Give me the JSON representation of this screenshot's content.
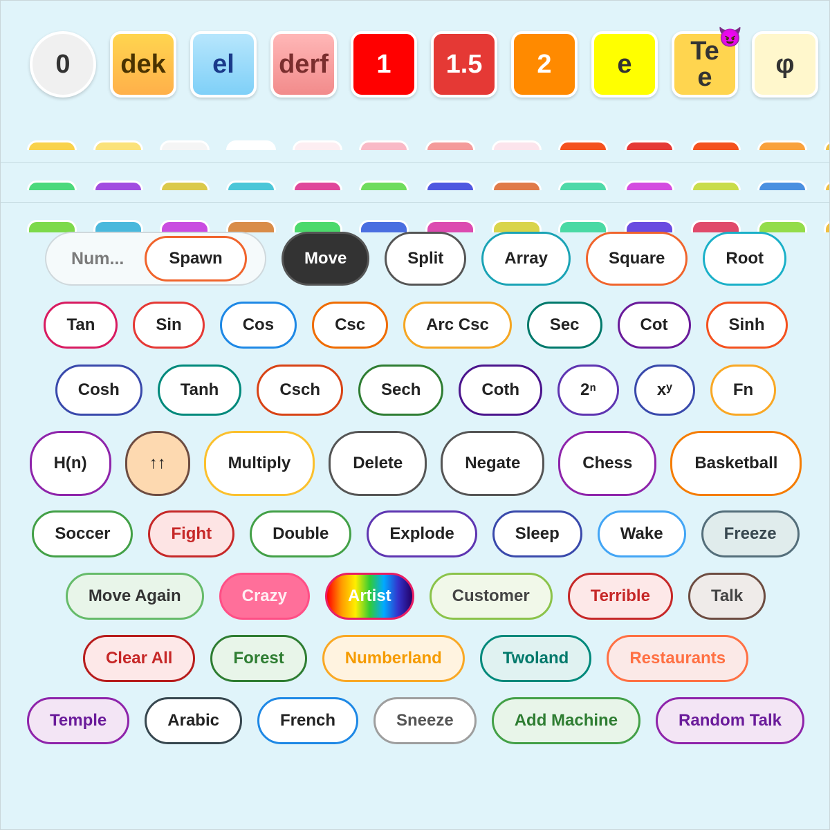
{
  "tiles": [
    {
      "label": "0",
      "fill": "#f0f0f0",
      "text": "#333333",
      "round": true
    },
    {
      "label": "dek",
      "fill": "linear-gradient(#ffd54f,#ffb04a)",
      "text": "#4a3300"
    },
    {
      "label": "el",
      "fill": "linear-gradient(#b7e6fc,#7fd0f8)",
      "text": "#1a3a8a"
    },
    {
      "label": "derf",
      "fill": "linear-gradient(#ffb7b7,#f28b8b)",
      "text": "#7a2e2e"
    },
    {
      "label": "1",
      "fill": "#ff0000",
      "text": "#ffffff"
    },
    {
      "label": "1.5",
      "fill": "#e53935",
      "text": "#ffffff"
    },
    {
      "label": "2",
      "fill": "#ff8a00",
      "text": "#ffffff"
    },
    {
      "label": "e",
      "fill": "#ffff00",
      "text": "#333333"
    },
    {
      "label": "Te",
      "sub": "e",
      "badge": "😈",
      "fill": "#ffd54f",
      "text": "#333333"
    },
    {
      "label": "φ",
      "fill": "#fff7cc",
      "text": "#333333"
    }
  ],
  "input": {
    "placeholder": "Num..."
  },
  "button_rows": [
    [
      {
        "label": "Spawn",
        "border": "#f0642c",
        "fill": "#ffffff",
        "text": "#222222",
        "in_input": true
      },
      {
        "label": "Move",
        "border": "#555555",
        "fill": "#333333",
        "text": "#ffffff"
      },
      {
        "label": "Split",
        "border": "#555555",
        "fill": "#ffffff",
        "text": "#222222"
      },
      {
        "label": "Array",
        "border": "#1aa3b5",
        "fill": "#ffffff",
        "text": "#222222"
      },
      {
        "label": "Square",
        "border": "#f0642c",
        "fill": "#ffffff",
        "text": "#222222"
      },
      {
        "label": "Root",
        "border": "#1ab0c8",
        "fill": "#ffffff",
        "text": "#222222"
      }
    ],
    [
      {
        "label": "Tan",
        "border": "#d81b60",
        "fill": "#ffffff",
        "text": "#222222"
      },
      {
        "label": "Sin",
        "border": "#e53935",
        "fill": "#ffffff",
        "text": "#222222"
      },
      {
        "label": "Cos",
        "border": "#1e88e5",
        "fill": "#ffffff",
        "text": "#222222"
      },
      {
        "label": "Csc",
        "border": "#ef6c00",
        "fill": "#ffffff",
        "text": "#222222"
      },
      {
        "label": "Arc Csc",
        "border": "#f5a623",
        "fill": "#ffffff",
        "text": "#222222"
      },
      {
        "label": "Sec",
        "border": "#00796b",
        "fill": "#ffffff",
        "text": "#222222"
      },
      {
        "label": "Cot",
        "border": "#6a1b9a",
        "fill": "#ffffff",
        "text": "#222222"
      },
      {
        "label": "Sinh",
        "border": "#f4511e",
        "fill": "#ffffff",
        "text": "#222222"
      }
    ],
    [
      {
        "label": "Cosh",
        "border": "#3949ab",
        "fill": "#ffffff",
        "text": "#222222"
      },
      {
        "label": "Tanh",
        "border": "#00897b",
        "fill": "#ffffff",
        "text": "#222222"
      },
      {
        "label": "Csch",
        "border": "#d84315",
        "fill": "#ffffff",
        "text": "#222222"
      },
      {
        "label": "Sech",
        "border": "#2e7d32",
        "fill": "#ffffff",
        "text": "#222222"
      },
      {
        "label": "Coth",
        "border": "#4a148c",
        "fill": "#ffffff",
        "text": "#222222"
      },
      {
        "label": "2ⁿ",
        "border": "#5e35b1",
        "fill": "#ffffff",
        "text": "#222222"
      },
      {
        "label": "xʸ",
        "border": "#3949ab",
        "fill": "#ffffff",
        "text": "#222222"
      },
      {
        "label": "Fn",
        "border": "#f9a825",
        "fill": "#ffffff",
        "text": "#222222"
      }
    ],
    [
      {
        "label": "H(n)",
        "border": "#8e24aa",
        "fill": "#ffffff",
        "text": "#222222"
      },
      {
        "label": "↑↑",
        "border": "#6d4c41",
        "fill": "#fdd9b0",
        "text": "#222222"
      },
      {
        "label": "Multiply",
        "border": "#fbc02d",
        "fill": "#ffffff",
        "text": "#222222"
      },
      {
        "label": "Delete",
        "border": "#555555",
        "fill": "#ffffff",
        "text": "#222222"
      },
      {
        "label": "Negate",
        "border": "#555555",
        "fill": "#ffffff",
        "text": "#222222"
      },
      {
        "label": "Chess",
        "border": "#8e24aa",
        "fill": "#ffffff",
        "text": "#222222"
      },
      {
        "label": "Basketball",
        "border": "#f57c00",
        "fill": "#ffffff",
        "text": "#222222"
      }
    ],
    [
      {
        "label": "Soccer",
        "border": "#43a047",
        "fill": "#ffffff",
        "text": "#222222"
      },
      {
        "label": "Fight",
        "border": "#c62828",
        "fill": "#fde4e4",
        "text": "#c62828"
      },
      {
        "label": "Double",
        "border": "#43a047",
        "fill": "#ffffff",
        "text": "#222222"
      },
      {
        "label": "Explode",
        "border": "#5e35b1",
        "fill": "#ffffff",
        "text": "#222222"
      },
      {
        "label": "Sleep",
        "border": "#3949ab",
        "fill": "#ffffff",
        "text": "#222222"
      },
      {
        "label": "Wake",
        "border": "#42a5f5",
        "fill": "#ffffff",
        "text": "#222222"
      },
      {
        "label": "Freeze",
        "border": "#546e7a",
        "fill": "#e0ecec",
        "text": "#37474f"
      }
    ],
    [
      {
        "label": "Move Again",
        "border": "#66bb6a",
        "fill": "#e8f5e9",
        "text": "#333333"
      },
      {
        "label": "Crazy",
        "border": "#ff4f86",
        "fill": "#ff6f9a",
        "text": "#ffeef2"
      },
      {
        "label": "Artist",
        "border": "#e91e63",
        "fill": "linear-gradient(90deg,#ff0000,#ff9900,#ffee00,#33cc33,#00aaff,#3333cc,#220066)",
        "text": "#ffffff"
      },
      {
        "label": "Customer",
        "border": "#8bc34a",
        "fill": "#f1f8e9",
        "text": "#444444"
      },
      {
        "label": "Terrible",
        "border": "#c62828",
        "fill": "#fde8e8",
        "text": "#c62828"
      },
      {
        "label": "Talk",
        "border": "#6d4c41",
        "fill": "#efebe9",
        "text": "#444444"
      }
    ],
    [
      {
        "label": "Clear All",
        "border": "#b71c1c",
        "fill": "#fde8e8",
        "text": "#c62828"
      },
      {
        "label": "Forest",
        "border": "#2e7d32",
        "fill": "#e8f5e9",
        "text": "#2e7d32"
      },
      {
        "label": "Numberland",
        "border": "#f9a825",
        "fill": "#fff3e0",
        "text": "#f59b00"
      },
      {
        "label": "Twoland",
        "border": "#00897b",
        "fill": "#e0f2f1",
        "text": "#00796b"
      },
      {
        "label": "Restaurants",
        "border": "#ff7043",
        "fill": "#fbe9e7",
        "text": "#ff7043"
      }
    ],
    [
      {
        "label": "Temple",
        "border": "#8e24aa",
        "fill": "#f3e5f5",
        "text": "#6a1b9a"
      },
      {
        "label": "Arabic",
        "border": "#37474f",
        "fill": "#ffffff",
        "text": "#222222"
      },
      {
        "label": "French",
        "border": "#1e88e5",
        "fill": "#ffffff",
        "text": "#222222"
      },
      {
        "label": "Sneeze",
        "border": "#9e9e9e",
        "fill": "#ffffff",
        "text": "#555555"
      },
      {
        "label": "Add Machine",
        "border": "#43a047",
        "fill": "#e8f5e9",
        "text": "#2e7d32"
      },
      {
        "label": "Random Talk",
        "border": "#8e24aa",
        "fill": "#f3e5f5",
        "text": "#6a1b9a"
      }
    ]
  ]
}
